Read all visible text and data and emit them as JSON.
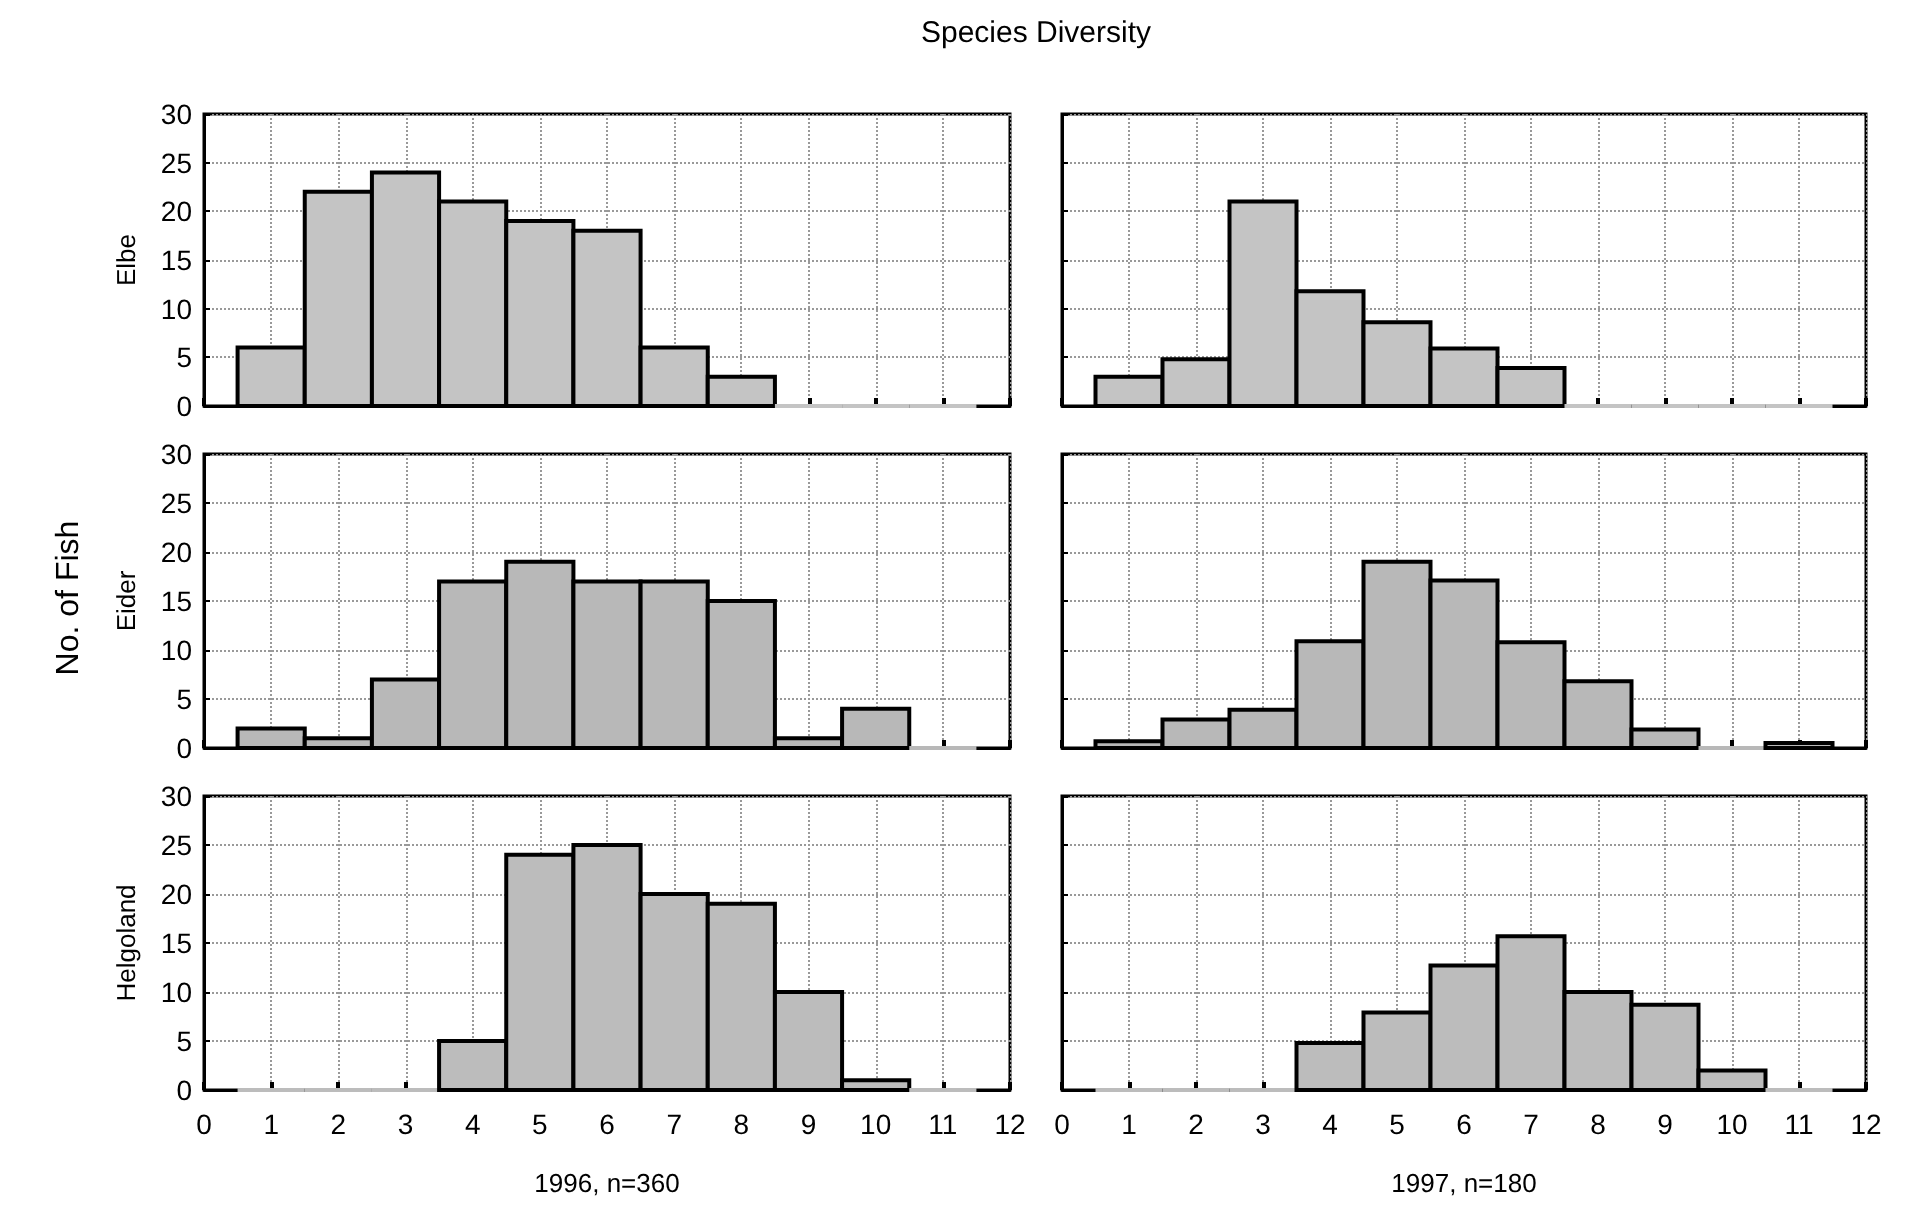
{
  "chart_data": [
    {
      "type": "histogram",
      "title": "Species Diversity",
      "ylabel": "Elbe",
      "bins": [
        0.5,
        1.5,
        2.5,
        3.5,
        4.5,
        5.5,
        6.5,
        7.5,
        8.5,
        9.5,
        10.5,
        11.5
      ],
      "values": [
        6,
        22,
        24,
        21,
        19,
        18,
        6,
        3,
        0,
        0,
        0
      ],
      "color": "#c4c4c4",
      "xlim": [
        0,
        12
      ],
      "xticks": [
        0,
        1,
        2,
        3,
        4,
        5,
        6,
        7,
        8,
        9,
        10,
        11,
        12
      ],
      "ylim": [
        0,
        30
      ],
      "yticks": [
        0,
        5,
        10,
        15,
        20,
        25,
        30
      ],
      "grid": true,
      "tick_labels": "y"
    },
    {
      "type": "histogram",
      "bins": [
        0.5,
        1.5,
        2.5,
        3.5,
        4.5,
        5.5,
        6.5,
        7.5,
        8.5,
        9.5,
        10.5,
        11.5
      ],
      "values": [
        3,
        4.8,
        21,
        11.8,
        8.6,
        5.9,
        3.9,
        0,
        0,
        0,
        0
      ],
      "color": "#c4c4c4",
      "xlim": [
        0,
        12
      ],
      "xticks": [
        0,
        1,
        2,
        3,
        4,
        5,
        6,
        7,
        8,
        9,
        10,
        11,
        12
      ],
      "ylim": [
        0,
        30
      ],
      "yticks": [
        0,
        5,
        10,
        15,
        20,
        25,
        30
      ],
      "grid": true,
      "tick_labels": false
    },
    {
      "type": "histogram",
      "ylabel": "Eider",
      "annotations": [
        "No. of Fish"
      ],
      "bins": [
        0.5,
        1.5,
        2.5,
        3.5,
        4.5,
        5.5,
        6.5,
        7.5,
        8.5,
        9.5,
        10.5,
        11.5
      ],
      "values": [
        2,
        1,
        7,
        17,
        19,
        17,
        17,
        15,
        1,
        4,
        0
      ],
      "color": "#b8b8b8",
      "xlim": [
        0,
        12
      ],
      "xticks": [
        0,
        1,
        2,
        3,
        4,
        5,
        6,
        7,
        8,
        9,
        10,
        11,
        12
      ],
      "ylim": [
        0,
        30
      ],
      "yticks": [
        0,
        5,
        10,
        15,
        20,
        25,
        30
      ],
      "grid": true,
      "tick_labels": "y"
    },
    {
      "type": "histogram",
      "bins": [
        0.5,
        1.5,
        2.5,
        3.5,
        4.5,
        5.5,
        6.5,
        7.5,
        8.5,
        9.5,
        10.5,
        11.5
      ],
      "values": [
        0.7,
        2.9,
        3.9,
        10.9,
        19,
        17.1,
        10.8,
        6.8,
        1.9,
        0,
        0.5
      ],
      "color": "#b8b8b8",
      "xlim": [
        0,
        12
      ],
      "xticks": [
        0,
        1,
        2,
        3,
        4,
        5,
        6,
        7,
        8,
        9,
        10,
        11,
        12
      ],
      "ylim": [
        0,
        30
      ],
      "yticks": [
        0,
        5,
        10,
        15,
        20,
        25,
        30
      ],
      "grid": true,
      "tick_labels": false
    },
    {
      "type": "histogram",
      "ylabel": "Helgoland",
      "xlabel": "1996, n=360",
      "bins": [
        0.5,
        1.5,
        2.5,
        3.5,
        4.5,
        5.5,
        6.5,
        7.5,
        8.5,
        9.5,
        10.5,
        11.5
      ],
      "values": [
        0,
        0,
        0,
        5,
        24,
        25,
        20,
        19,
        10,
        1,
        0
      ],
      "color": "#bcbcbc",
      "xlim": [
        0,
        12
      ],
      "xticks": [
        0,
        1,
        2,
        3,
        4,
        5,
        6,
        7,
        8,
        9,
        10,
        11,
        12
      ],
      "ylim": [
        0,
        30
      ],
      "yticks": [
        0,
        5,
        10,
        15,
        20,
        25,
        30
      ],
      "grid": true
    },
    {
      "type": "histogram",
      "xlabel": "1997, n=180",
      "bins": [
        0.5,
        1.5,
        2.5,
        3.5,
        4.5,
        5.5,
        6.5,
        7.5,
        8.5,
        9.5,
        10.5,
        11.5
      ],
      "values": [
        0,
        0,
        0,
        4.8,
        7.9,
        12.7,
        15.7,
        10,
        8.7,
        2,
        0
      ],
      "color": "#bcbcbc",
      "xlim": [
        0,
        12
      ],
      "xticks": [
        0,
        1,
        2,
        3,
        4,
        5,
        6,
        7,
        8,
        9,
        10,
        11,
        12
      ],
      "ylim": [
        0,
        30
      ],
      "yticks": [
        0,
        5,
        10,
        15,
        20,
        25,
        30
      ],
      "grid": true,
      "tick_labels": "x"
    }
  ]
}
